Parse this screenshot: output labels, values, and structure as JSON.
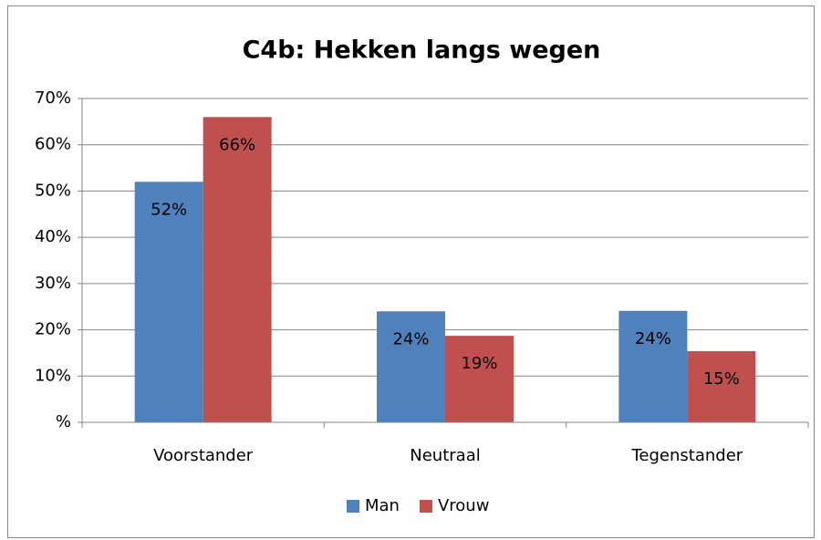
{
  "chart_data": {
    "type": "bar",
    "title": "C4b: Hekken langs wegen",
    "categories": [
      "Voorstander",
      "Neutraal",
      "Tegenstander"
    ],
    "series": [
      {
        "name": "Man",
        "color": "#4f81bd",
        "values": [
          52,
          24,
          24.1
        ],
        "value_labels": [
          "52%",
          "24%",
          "24%"
        ]
      },
      {
        "name": "Vrouw",
        "color": "#c0504d",
        "values": [
          66,
          18.7,
          15.4
        ],
        "value_labels": [
          "66%",
          "19%",
          "15%"
        ]
      }
    ],
    "ylim": [
      0,
      70
    ],
    "yticks": [
      {
        "value": 0,
        "label": "%"
      },
      {
        "value": 10,
        "label": "10%"
      },
      {
        "value": 20,
        "label": "20%"
      },
      {
        "value": 30,
        "label": "30%"
      },
      {
        "value": 40,
        "label": "40%"
      },
      {
        "value": 50,
        "label": "50%"
      },
      {
        "value": 60,
        "label": "60%"
      },
      {
        "value": 70,
        "label": "70%"
      }
    ],
    "grid": true,
    "legend": "bottom"
  }
}
